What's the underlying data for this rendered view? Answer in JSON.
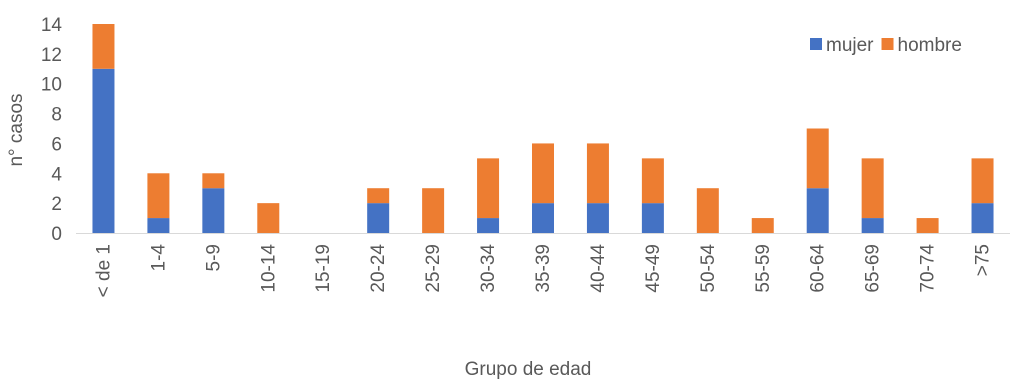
{
  "chart_data": {
    "type": "bar",
    "stacked": true,
    "title": "",
    "xlabel": "Grupo de edad",
    "ylabel": "n° casos",
    "ylim": [
      0,
      14
    ],
    "yticks": [
      0,
      2,
      4,
      6,
      8,
      10,
      12,
      14
    ],
    "grid": false,
    "legend_position": "top-right",
    "categories": [
      "< de 1",
      "1-4",
      "5-9",
      "10-14",
      "15-19",
      "20-24",
      "25-29",
      "30-34",
      "35-39",
      "40-44",
      "45-49",
      "50-54",
      "55-59",
      "60-64",
      "65-69",
      "70-74",
      ">75"
    ],
    "series": [
      {
        "name": "mujer",
        "color": "#4472C4",
        "values": [
          11,
          1,
          3,
          0,
          0,
          2,
          0,
          1,
          2,
          2,
          2,
          0,
          0,
          3,
          1,
          0,
          2
        ]
      },
      {
        "name": "hombre",
        "color": "#ED7D31",
        "values": [
          3,
          3,
          1,
          2,
          0,
          1,
          3,
          4,
          4,
          4,
          3,
          3,
          1,
          4,
          4,
          1,
          3
        ]
      }
    ]
  }
}
